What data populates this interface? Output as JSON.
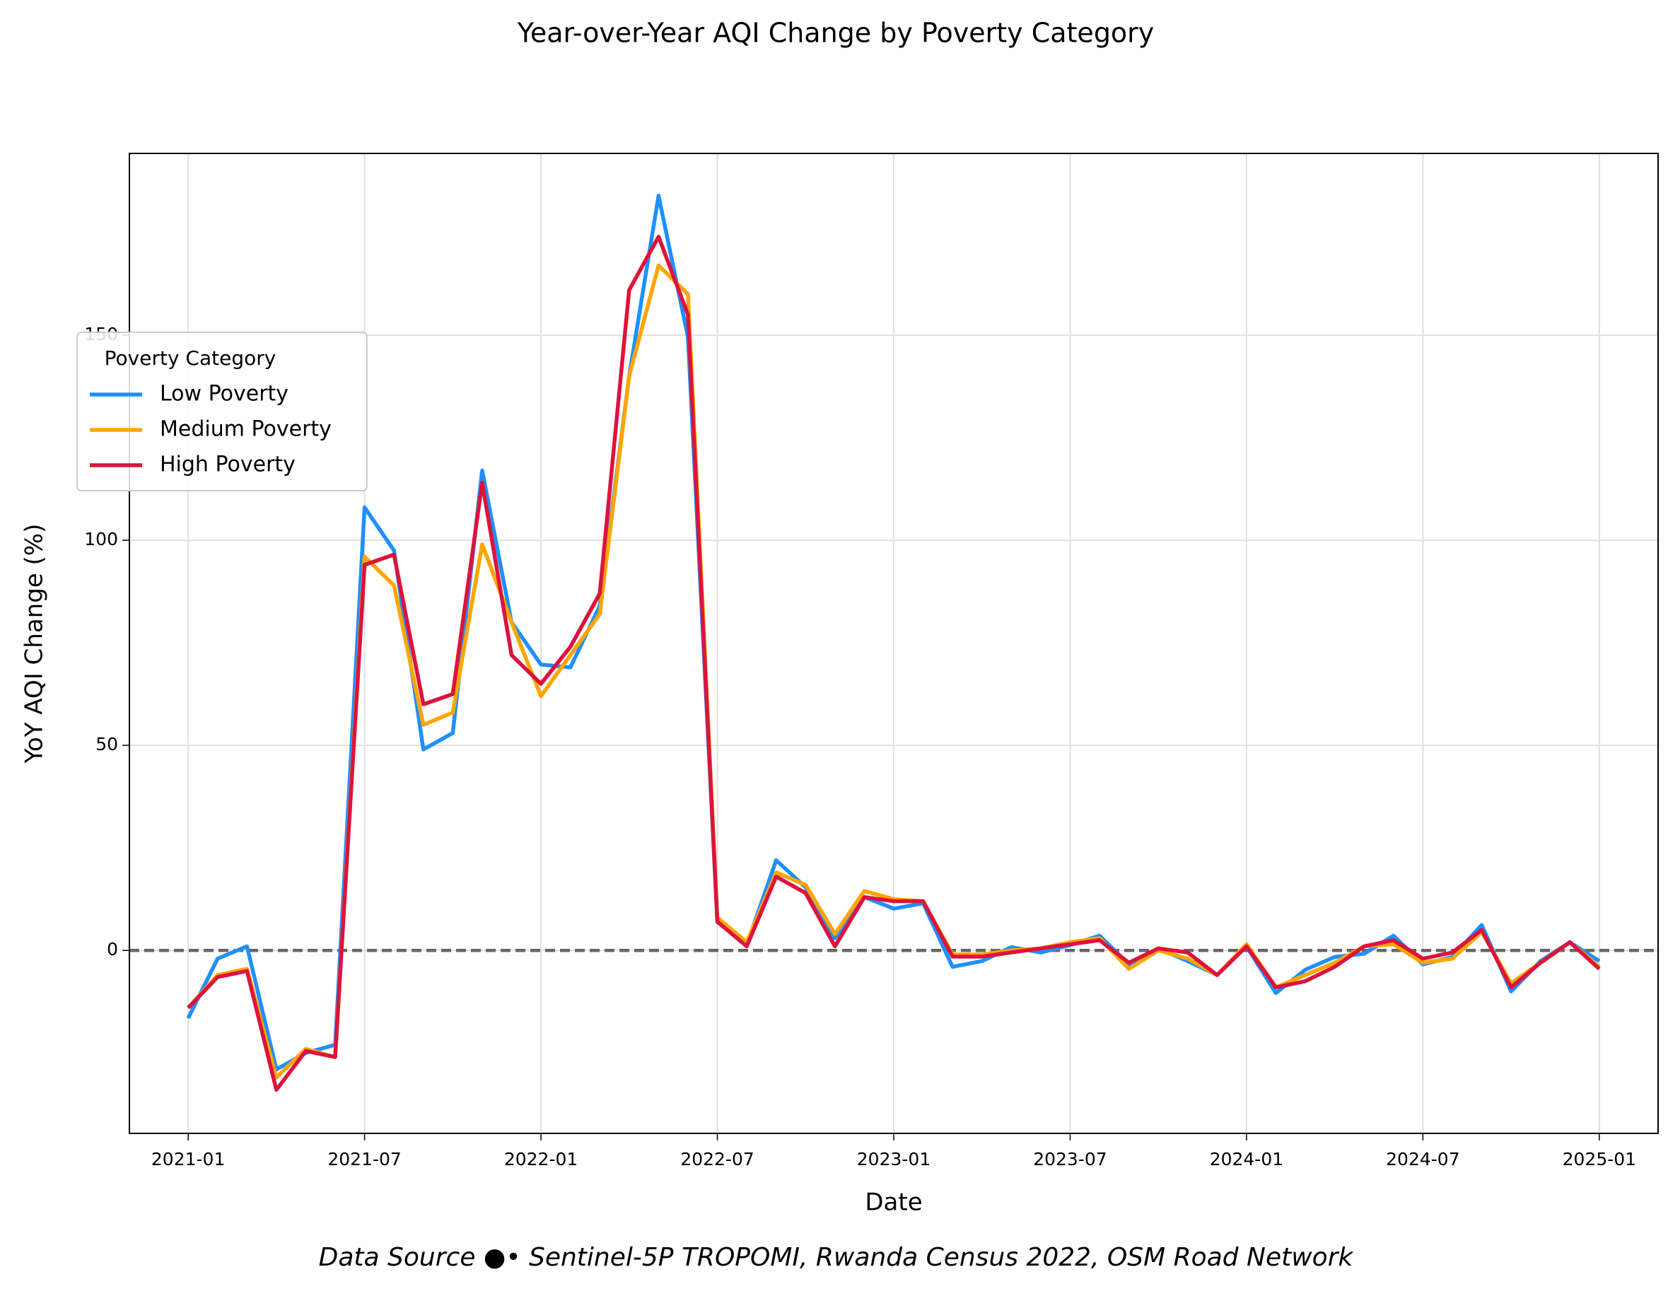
{
  "chart_data": {
    "type": "line",
    "title": "Year-over-Year AQI Change by Poverty Category",
    "x_label": "Date",
    "y_label": "YoY AQI Change (%)",
    "footnote": "Data Source ●• Sentinel-5P TROPOMI, Rwanda Census 2022, OSM Road Network",
    "legend_title": "Poverty Category",
    "legend_loc": "upper left",
    "grid": true,
    "hline": 0,
    "x": [
      "2021-01",
      "2021-02",
      "2021-03",
      "2021-04",
      "2021-05",
      "2021-06",
      "2021-07",
      "2021-08",
      "2021-09",
      "2021-10",
      "2021-11",
      "2021-12",
      "2022-01",
      "2022-02",
      "2022-03",
      "2022-04",
      "2022-05",
      "2022-06",
      "2022-07",
      "2022-08",
      "2022-09",
      "2022-10",
      "2022-11",
      "2022-12",
      "2023-01",
      "2023-02",
      "2023-03",
      "2023-04",
      "2023-05",
      "2023-06",
      "2023-07",
      "2023-08",
      "2023-09",
      "2023-10",
      "2023-11",
      "2023-12",
      "2024-01",
      "2024-02",
      "2024-03",
      "2024-04",
      "2024-05",
      "2024-06",
      "2024-07",
      "2024-08",
      "2024-09",
      "2024-10",
      "2024-11",
      "2024-12",
      "2025-01"
    ],
    "xlim": [
      "2020-11",
      "2025-03"
    ],
    "xticks": [
      "2021-01",
      "2021-07",
      "2022-01",
      "2022-07",
      "2023-01",
      "2023-07",
      "2024-01",
      "2024-07",
      "2025-01"
    ],
    "ylim": [
      -44.6,
      194.3
    ],
    "yticks": [
      0,
      50,
      100,
      150
    ],
    "series": [
      {
        "name": "Low Poverty",
        "color": "#1e90ff",
        "values": [
          -16.5,
          -2,
          1,
          -29,
          -25,
          -23,
          108,
          97.5,
          49,
          53,
          117,
          80,
          69.7,
          69,
          84,
          140,
          184,
          149.5,
          7,
          1.3,
          22,
          15.4,
          3,
          13,
          10.2,
          11.5,
          -4,
          -2.6,
          0.8,
          -0.5,
          1.3,
          3.6,
          -3.4,
          0.5,
          -2.6,
          -6,
          1,
          -10.4,
          -4.7,
          -1.6,
          -0.8,
          3.6,
          -3.4,
          -1.6,
          6.2,
          -10,
          -2.6,
          2,
          -2.6
        ]
      },
      {
        "name": "Medium Poverty",
        "color": "#ffa500",
        "values": [
          -14,
          -6,
          -4.5,
          -31,
          -24,
          -26,
          96,
          89,
          55,
          58,
          99,
          80,
          62,
          72,
          82,
          140,
          167,
          160,
          8,
          2,
          19,
          16,
          4,
          14.5,
          12.5,
          12,
          -1,
          -1,
          0,
          0.5,
          2,
          3,
          -4.5,
          0,
          -2,
          -6,
          1.5,
          -9,
          -6,
          -3,
          1,
          1.5,
          -3,
          -2,
          4.5,
          -8,
          -3,
          2,
          -4
        ]
      },
      {
        "name": "High Poverty",
        "color": "#dc143c",
        "values": [
          -14,
          -6.5,
          -5,
          -34,
          -24.5,
          -26,
          94,
          96.5,
          60,
          62.5,
          114,
          72,
          65,
          74,
          87,
          161,
          174,
          155,
          7,
          1,
          18,
          14,
          1,
          13,
          12,
          12,
          -1.5,
          -1.5,
          -0.5,
          0.5,
          1.5,
          2.5,
          -3,
          0.5,
          -0.5,
          -6,
          1,
          -9,
          -7.5,
          -4,
          1,
          2.5,
          -2,
          -0.5,
          5,
          -9,
          -3,
          2,
          -4.5
        ]
      }
    ]
  }
}
